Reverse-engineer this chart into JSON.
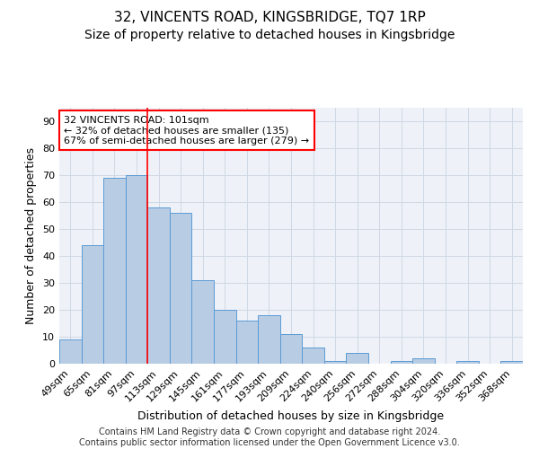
{
  "title": "32, VINCENTS ROAD, KINGSBRIDGE, TQ7 1RP",
  "subtitle": "Size of property relative to detached houses in Kingsbridge",
  "xlabel": "Distribution of detached houses by size in Kingsbridge",
  "ylabel": "Number of detached properties",
  "footer_line1": "Contains HM Land Registry data © Crown copyright and database right 2024.",
  "footer_line2": "Contains public sector information licensed under the Open Government Licence v3.0.",
  "bin_labels": [
    "49sqm",
    "65sqm",
    "81sqm",
    "97sqm",
    "113sqm",
    "129sqm",
    "145sqm",
    "161sqm",
    "177sqm",
    "193sqm",
    "209sqm",
    "224sqm",
    "240sqm",
    "256sqm",
    "272sqm",
    "288sqm",
    "304sqm",
    "320sqm",
    "336sqm",
    "352sqm",
    "368sqm"
  ],
  "bar_values": [
    9,
    44,
    69,
    70,
    58,
    56,
    31,
    20,
    16,
    18,
    11,
    6,
    1,
    4,
    0,
    1,
    2,
    0,
    1,
    0,
    1
  ],
  "bar_color": "#b8cce4",
  "bar_edge_color": "#5b9bd5",
  "grid_color": "#d0d8e4",
  "background_color": "#eef2f8",
  "annotation_box_text": "32 VINCENTS ROAD: 101sqm\n← 32% of detached houses are smaller (135)\n67% of semi-detached houses are larger (279) →",
  "annotation_box_edgecolor": "red",
  "annotation_box_facecolor": "white",
  "vline_color": "red",
  "ylim": [
    0,
    95
  ],
  "yticks": [
    0,
    10,
    20,
    30,
    40,
    50,
    60,
    70,
    80,
    90
  ],
  "title_fontsize": 11,
  "subtitle_fontsize": 10,
  "xlabel_fontsize": 9,
  "ylabel_fontsize": 9,
  "tick_fontsize": 8,
  "annotation_fontsize": 8,
  "footer_fontsize": 7
}
